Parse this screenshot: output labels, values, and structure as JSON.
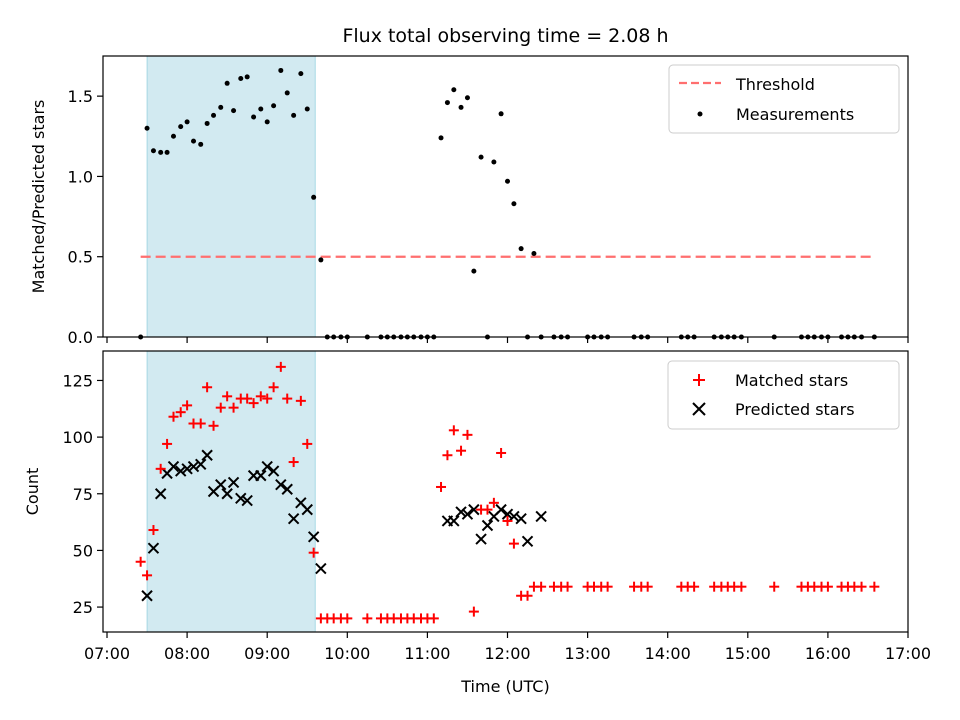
{
  "chart_data": [
    {
      "type": "scatter",
      "title": "Flux total observing time = 2.08 h",
      "xlabel": "",
      "ylabel": "Matched/Predicted stars",
      "xlim": [
        6.95,
        17.0
      ],
      "ylim": [
        0.0,
        1.75
      ],
      "yticks": [
        0.0,
        0.5,
        1.0,
        1.5
      ],
      "ytick_labels": [
        "0.0",
        "0.5",
        "1.0",
        "1.5"
      ],
      "grid": false,
      "legend_position": "top-right",
      "shaded_x_range": [
        7.5,
        9.6
      ],
      "shade_color": "#add8e6",
      "threshold": {
        "name": "Threshold",
        "y": 0.5,
        "x_range": [
          7.42,
          16.55
        ],
        "color": "#ff6f6f"
      },
      "series": [
        {
          "name": "Measurements",
          "color": "#000000",
          "x": [
            7.42,
            7.5,
            7.58,
            7.67,
            7.75,
            7.83,
            7.92,
            8.0,
            8.08,
            8.17,
            8.25,
            8.33,
            8.42,
            8.5,
            8.58,
            8.67,
            8.75,
            8.83,
            8.92,
            9.0,
            9.08,
            9.17,
            9.25,
            9.33,
            9.42,
            9.5,
            9.58,
            9.67,
            9.75,
            9.83,
            9.92,
            10.0,
            10.25,
            10.42,
            10.5,
            10.58,
            10.67,
            10.75,
            10.83,
            10.92,
            11.0,
            11.08,
            11.17,
            11.25,
            11.33,
            11.42,
            11.5,
            11.58,
            11.67,
            11.75,
            11.83,
            11.92,
            12.0,
            12.08,
            12.17,
            12.25,
            12.33,
            12.42,
            12.58,
            12.67,
            12.75,
            13.0,
            13.08,
            13.17,
            13.25,
            13.58,
            13.67,
            13.75,
            14.17,
            14.25,
            14.33,
            14.58,
            14.67,
            14.75,
            14.83,
            14.92,
            15.33,
            15.67,
            15.75,
            15.83,
            15.92,
            16.0,
            16.17,
            16.25,
            16.33,
            16.42,
            16.58
          ],
          "y": [
            0.0,
            1.3,
            1.16,
            1.15,
            1.15,
            1.25,
            1.31,
            1.34,
            1.22,
            1.2,
            1.33,
            1.38,
            1.43,
            1.58,
            1.41,
            1.61,
            1.62,
            1.37,
            1.42,
            1.34,
            1.44,
            1.66,
            1.52,
            1.38,
            1.64,
            1.42,
            0.87,
            0.48,
            0.0,
            0.0,
            0.0,
            0.0,
            0.0,
            0.0,
            0.0,
            0.0,
            0.0,
            0.0,
            0.0,
            0.0,
            0.0,
            0.0,
            1.24,
            1.46,
            1.54,
            1.43,
            1.49,
            0.41,
            1.12,
            0.0,
            1.09,
            1.39,
            0.97,
            0.83,
            0.55,
            0.0,
            0.52,
            0.0,
            0.0,
            0.0,
            0.0,
            0.0,
            0.0,
            0.0,
            0.0,
            0.0,
            0.0,
            0.0,
            0.0,
            0.0,
            0.0,
            0.0,
            0.0,
            0.0,
            0.0,
            0.0,
            0.0,
            0.0,
            0.0,
            0.0,
            0.0,
            0.0,
            0.0,
            0.0,
            0.0,
            0.0,
            0.0
          ]
        }
      ]
    },
    {
      "type": "scatter",
      "title": "",
      "xlabel": "Time (UTC)",
      "ylabel": "Count",
      "xlim": [
        6.95,
        17.0
      ],
      "ylim": [
        14,
        138
      ],
      "yticks": [
        25,
        50,
        75,
        100,
        125
      ],
      "ytick_labels": [
        "25",
        "50",
        "75",
        "100",
        "125"
      ],
      "xticks": [
        7,
        8,
        9,
        10,
        11,
        12,
        13,
        14,
        15,
        16,
        17
      ],
      "xtick_labels": [
        "07:00",
        "08:00",
        "09:00",
        "10:00",
        "11:00",
        "12:00",
        "13:00",
        "14:00",
        "15:00",
        "16:00",
        "17:00"
      ],
      "grid": false,
      "legend_position": "top-right",
      "shaded_x_range": [
        7.5,
        9.6
      ],
      "series": [
        {
          "name": "Matched stars",
          "marker": "+",
          "color": "#ff0000",
          "x": [
            7.42,
            7.5,
            7.58,
            7.67,
            7.75,
            7.83,
            7.92,
            8.0,
            8.08,
            8.17,
            8.25,
            8.33,
            8.42,
            8.5,
            8.58,
            8.67,
            8.75,
            8.83,
            8.92,
            9.0,
            9.08,
            9.17,
            9.25,
            9.33,
            9.42,
            9.5,
            9.58,
            9.67,
            9.75,
            9.83,
            9.92,
            10.0,
            10.25,
            10.42,
            10.5,
            10.58,
            10.67,
            10.75,
            10.83,
            10.92,
            11.0,
            11.08,
            11.17,
            11.25,
            11.33,
            11.42,
            11.5,
            11.58,
            11.67,
            11.75,
            11.83,
            11.92,
            12.0,
            12.08,
            12.17,
            12.25,
            12.33,
            12.42,
            12.58,
            12.67,
            12.75,
            13.0,
            13.08,
            13.17,
            13.25,
            13.58,
            13.67,
            13.75,
            14.17,
            14.25,
            14.33,
            14.58,
            14.67,
            14.75,
            14.83,
            14.92,
            15.33,
            15.67,
            15.75,
            15.83,
            15.92,
            16.0,
            16.17,
            16.25,
            16.33,
            16.42,
            16.58
          ],
          "y": [
            45,
            39,
            59,
            86,
            97,
            109,
            111,
            114,
            106,
            106,
            122,
            105,
            113,
            118,
            113,
            117,
            117,
            115,
            118,
            117,
            122,
            131,
            117,
            89,
            116,
            97,
            49,
            20,
            20,
            20,
            20,
            20,
            20,
            20,
            20,
            20,
            20,
            20,
            20,
            20,
            20,
            20,
            78,
            92,
            103,
            94,
            101,
            23,
            68,
            68,
            71,
            93,
            63,
            53,
            30,
            30,
            34,
            34,
            34,
            34,
            34,
            34,
            34,
            34,
            34,
            34,
            34,
            34,
            34,
            34,
            34,
            34,
            34,
            34,
            34,
            34,
            34,
            34,
            34,
            34,
            34,
            34,
            34,
            34,
            34,
            34,
            34
          ]
        },
        {
          "name": "Predicted stars",
          "marker": "x",
          "color": "#000000",
          "x": [
            7.5,
            7.58,
            7.67,
            7.75,
            7.83,
            7.92,
            8.0,
            8.08,
            8.17,
            8.25,
            8.33,
            8.42,
            8.5,
            8.58,
            8.67,
            8.75,
            8.83,
            8.92,
            9.0,
            9.08,
            9.17,
            9.25,
            9.33,
            9.42,
            9.5,
            9.58,
            9.67,
            11.25,
            11.33,
            11.42,
            11.5,
            11.58,
            11.67,
            11.75,
            11.83,
            11.92,
            12.0,
            12.08,
            12.17,
            12.25,
            12.42
          ],
          "y": [
            30,
            51,
            75,
            84,
            87,
            85,
            86,
            87,
            88,
            92,
            76,
            79,
            75,
            80,
            73,
            72,
            83,
            83,
            87,
            85,
            79,
            77,
            64,
            71,
            68,
            56,
            42,
            63,
            63,
            67,
            66,
            68,
            55,
            61,
            65,
            68,
            66,
            65,
            64,
            54,
            65
          ]
        }
      ]
    }
  ]
}
